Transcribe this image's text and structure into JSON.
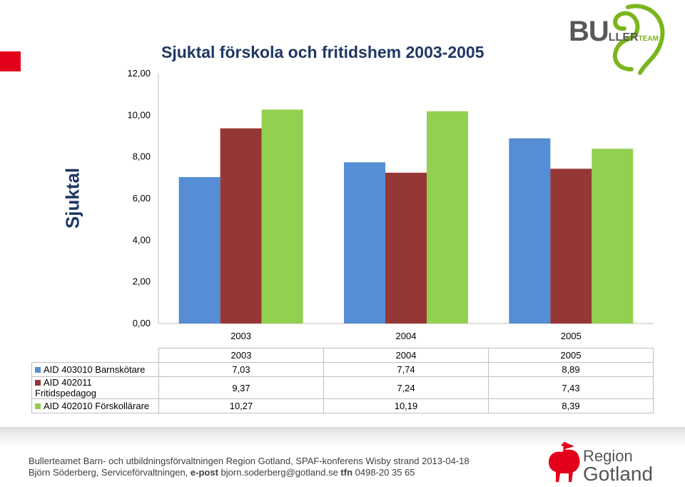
{
  "chart_data": {
    "type": "bar",
    "title": "Sjuktal förskola och fritidshem 2003-2005",
    "ylabel": "Sjuktal",
    "xlabel": "",
    "categories": [
      "2003",
      "2004",
      "2005"
    ],
    "ylim": [
      0,
      12
    ],
    "yticks": [
      "0,00",
      "2,00",
      "4,00",
      "6,00",
      "8,00",
      "10,00",
      "12,00"
    ],
    "grid": false,
    "series": [
      {
        "name": "AID 403010 Barnskötare",
        "color": "#558ed5",
        "values": [
          7.03,
          7.74,
          8.89
        ],
        "labels": [
          "7,03",
          "7,74",
          "8,89"
        ]
      },
      {
        "name": "AID 402011 Fritidspedagog",
        "color": "#953735",
        "values": [
          9.37,
          7.24,
          7.43
        ],
        "labels": [
          "9,37",
          "7,24",
          "7,43"
        ]
      },
      {
        "name": "AID 402010 Förskollärare",
        "color": "#92d050",
        "values": [
          10.27,
          10.19,
          8.39
        ],
        "labels": [
          "10,27",
          "10,19",
          "8,39"
        ]
      }
    ]
  },
  "logo_top": {
    "big": "BU",
    "mid": "LLER",
    "small": "TEAM"
  },
  "footer": {
    "line1": "Bullerteamet Barn- och utbildningsförvaltningen Region Gotland, SPAF-konferens Wisby strand 2013-04-18",
    "line2_name": "Björn Söderberg, Serviceförvaltningen,",
    "epost_label": "e-post",
    "email": "bjorn.soderberg@gotland.se",
    "tfn_label": "tfn",
    "phone": "0498-20 35 65"
  },
  "region_logo": {
    "line1": "Region",
    "line2": "Gotland"
  },
  "colors": {
    "accent_red": "#e3001b",
    "title_blue": "#1f3864"
  }
}
